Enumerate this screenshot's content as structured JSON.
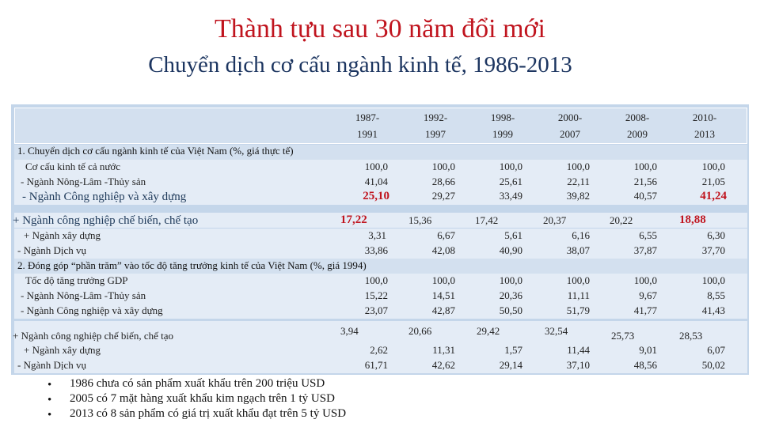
{
  "title": "Thành tựu sau 30 năm đổi mới",
  "subtitle": "Chuyển dịch cơ cấu ngành kinh tế, 1986-2013",
  "table": {
    "periods": [
      {
        "l1": "1987-",
        "l2": "1991"
      },
      {
        "l1": "1992-",
        "l2": "1997"
      },
      {
        "l1": "1998-",
        "l2": "1999"
      },
      {
        "l1": "2000-",
        "l2": "2007"
      },
      {
        "l1": "2008-",
        "l2": "2009"
      },
      {
        "l1": "2010-",
        "l2": "2013"
      }
    ],
    "section1": "1. Chuyển dịch cơ cấu ngành kinh tế của Việt Nam (%, giá thực tế)",
    "section2": "2. Đóng góp “phần trăm” vào tốc độ tăng trưởng kinh tế của Việt Nam (%, giá 1994)",
    "s1": {
      "r1": {
        "label": "Cơ cấu kinh tế cả nước",
        "v": [
          "100,0",
          "100,0",
          "100,0",
          "100,0",
          "100,0",
          "100,0"
        ]
      },
      "r2": {
        "label": "- Ngành Nông-Lâm -Thủy sản",
        "v": [
          "41,04",
          "28,66",
          "25,61",
          "22,11",
          "21,56",
          "21,05"
        ]
      },
      "r3": {
        "label": "- Ngành Công nghiệp và xây dựng",
        "v": [
          "25,10",
          "29,27",
          "33,49",
          "39,82",
          "40,57",
          "41,24"
        ]
      },
      "r4": {
        "label": "+ Ngành công nghiệp chế biến, chế tạo",
        "v": [
          "17,22",
          "15,36",
          "17,42",
          "20,37",
          "20,22",
          "18,88"
        ]
      },
      "r5": {
        "label": "+ Ngành xây dựng",
        "v": [
          "3,31",
          "6,67",
          "5,61",
          "6,16",
          "6,55",
          "6,30"
        ]
      },
      "r6": {
        "label": "- Ngành Dịch vụ",
        "v": [
          "33,86",
          "42,08",
          "40,90",
          "38,07",
          "37,87",
          "37,70"
        ]
      }
    },
    "s2": {
      "r1": {
        "label": "Tốc độ tăng trưởng GDP",
        "v": [
          "100,0",
          "100,0",
          "100,0",
          "100,0",
          "100,0",
          "100,0"
        ]
      },
      "r2": {
        "label": "- Ngành Nông-Lâm -Thủy sản",
        "v": [
          "15,22",
          "14,51",
          "20,36",
          "11,11",
          "9,67",
          "8,55"
        ]
      },
      "r3": {
        "label": "- Ngành Công nghiệp và xây dựng",
        "v": [
          "23,07",
          "42,87",
          "50,50",
          "51,79",
          "41,77",
          "41,43"
        ]
      },
      "r4": {
        "label": "+ Ngành công nghiệp chế biến, chế tạo",
        "v": [
          "3,94",
          "20,66",
          "29,42",
          "32,54",
          "25,73",
          "28,53"
        ]
      },
      "r5": {
        "label": "+ Ngành xây dựng",
        "v": [
          "2,62",
          "11,31",
          "1,57",
          "11,44",
          "9,01",
          "6,07"
        ]
      },
      "r6": {
        "label": "- Ngành Dịch vụ",
        "v": [
          "61,71",
          "42,62",
          "29,14",
          "37,10",
          "48,56",
          "50,02"
        ]
      }
    }
  },
  "notes": {
    "bullet": "•",
    "n1": "1986 chưa có sản phẩm xuất khẩu trên 200 triệu USD",
    "n2": "2005 có 7 mặt hàng xuất khẩu kim ngạch trên 1 tỷ USD",
    "n3": "2013 có 8 sản phẩm có giá trị xuất khẩu đạt trên 5 tỷ USD"
  }
}
